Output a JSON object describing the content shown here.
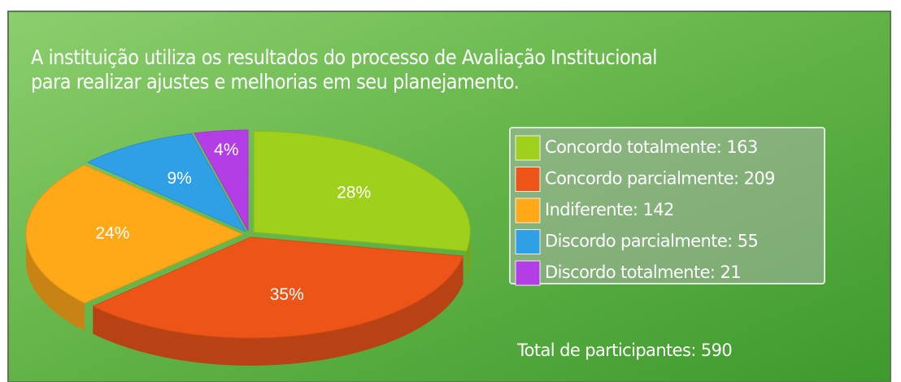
{
  "chart_data": {
    "type": "pie",
    "title_lines": [
      "A instituição utiliza os resultados do processo de Avaliação Institucional",
      "para realizar ajustes e melhorias em seu planejamento."
    ],
    "categories": [
      "Concordo totalmente: 163",
      "Concordo parcialmente: 209",
      "Indiferente: 142",
      "Discordo parcialmente: 55",
      "Discordo totalmente: 21"
    ],
    "values": [
      28,
      35,
      24,
      9,
      4
    ],
    "value_labels": [
      "28%",
      "35%",
      "24%",
      "9%",
      "4%"
    ],
    "colors": [
      "#9fd11c",
      "#ec5418",
      "#ffa818",
      "#2f9fe6",
      "#b43ee6"
    ],
    "annotation": "Total de participantes: 590"
  }
}
